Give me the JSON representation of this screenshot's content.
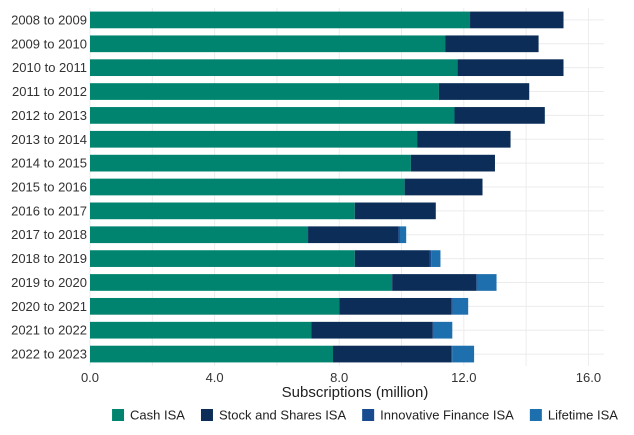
{
  "chart_data": {
    "type": "bar",
    "orientation": "horizontal",
    "stacked": true,
    "title": "",
    "xlabel": "Subscriptions (million)",
    "ylabel": "",
    "xlim": [
      0,
      16.5
    ],
    "xticks": [
      0,
      4,
      8,
      12,
      16
    ],
    "xtick_labels": [
      "0.0",
      "4.0",
      "8.0",
      "12.0",
      "16.0"
    ],
    "grid": true,
    "legend_position": "bottom",
    "categories": [
      "2008 to 2009",
      "2009 to 2010",
      "2010 to 2011",
      "2011 to 2012",
      "2012 to 2013",
      "2013 to 2014",
      "2014 to 2015",
      "2015 to 2016",
      "2016 to 2017",
      "2017 to 2018",
      "2018 to 2019",
      "2019 to 2020",
      "2020 to 2021",
      "2021 to 2022",
      "2022 to 2023"
    ],
    "series": [
      {
        "name": "Cash ISA",
        "color": "#00846f",
        "values": [
          12.2,
          11.4,
          11.8,
          11.2,
          11.7,
          10.5,
          10.3,
          10.1,
          8.5,
          7.0,
          8.5,
          9.7,
          8.0,
          7.1,
          7.8
        ]
      },
      {
        "name": "Stock and Shares ISA",
        "color": "#0b2d57",
        "values": [
          3.0,
          3.0,
          3.4,
          2.9,
          2.9,
          3.0,
          2.7,
          2.5,
          2.6,
          2.9,
          2.4,
          2.7,
          3.6,
          3.9,
          3.8
        ]
      },
      {
        "name": "Innovative Finance ISA",
        "color": "#174a8e",
        "values": [
          0,
          0,
          0,
          0,
          0,
          0,
          0,
          0,
          0,
          0.05,
          0.05,
          0.05,
          0.04,
          0.03,
          0.03
        ]
      },
      {
        "name": "Lifetime ISA",
        "color": "#1d6fae",
        "values": [
          0,
          0,
          0,
          0,
          0,
          0,
          0,
          0,
          0,
          0.2,
          0.3,
          0.6,
          0.5,
          0.6,
          0.7
        ]
      }
    ]
  }
}
